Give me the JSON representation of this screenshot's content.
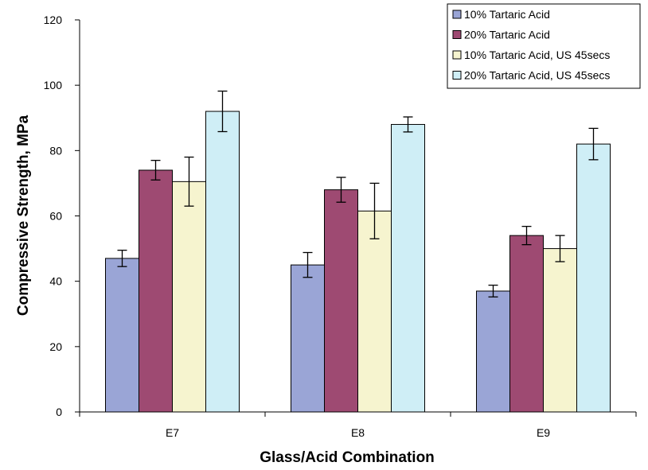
{
  "chart_data": {
    "type": "bar",
    "title": "",
    "xlabel": "Glass/Acid Combination",
    "ylabel": "Compressive Strength, MPa",
    "ylim": [
      0,
      120
    ],
    "yticks": [
      0,
      20,
      40,
      60,
      80,
      100,
      120
    ],
    "categories": [
      "E7",
      "E8",
      "E9"
    ],
    "grid": false,
    "legend_position": "top-right",
    "series": [
      {
        "name": "10% Tartaric Acid",
        "color": "#9aa5d6",
        "values": [
          47,
          45,
          37
        ],
        "error": [
          2.5,
          3.8,
          1.8
        ]
      },
      {
        "name": "20% Tartaric Acid",
        "color": "#9e4a72",
        "values": [
          74,
          68,
          54
        ],
        "error": [
          3.0,
          3.8,
          2.8
        ]
      },
      {
        "name": "10% Tartaric Acid, US 45secs",
        "color": "#f6f4cf",
        "values": [
          70.5,
          61.5,
          50
        ],
        "error": [
          7.5,
          8.5,
          4.0
        ]
      },
      {
        "name": "20% Tartaric Acid, US 45secs",
        "color": "#cfeef6",
        "values": [
          92,
          88,
          82
        ],
        "error": [
          6.2,
          2.3,
          4.8
        ]
      }
    ]
  }
}
